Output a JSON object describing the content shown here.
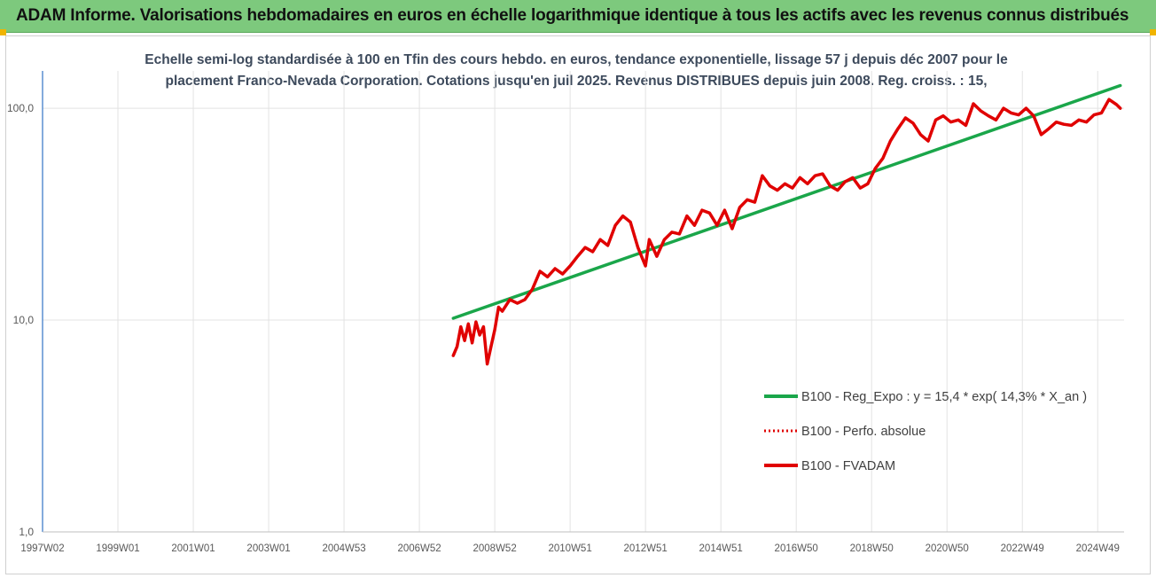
{
  "header": {
    "title": "ADAM Informe. Valorisations hebdomadaires en euros en échelle logarithmique identique à tous les actifs avec les revenus connus distribués",
    "colors": {
      "banner": "#7dc97d",
      "corner": "#f0b400"
    }
  },
  "chart_data": {
    "type": "line",
    "subtitle_lines": [
      "Echelle semi-log standardisée à 100 en Tfin des cours hebdo. en euros, tendance exponentielle, lissage 57 j depuis déc 2007 pour le",
      "placement Franco-Nevada Corporation. Cotations jusqu'en juil 2025. Revenus DISTRIBUES depuis juin 2008. Reg. croiss. : 15,"
    ],
    "y_scale": "log",
    "ylim": [
      1,
      150
    ],
    "y_ticks": [
      {
        "value": 1,
        "label": "1,0"
      },
      {
        "value": 10,
        "label": "10,0"
      },
      {
        "value": 100,
        "label": "100,0"
      }
    ],
    "xlim": [
      1997.0,
      2025.7
    ],
    "x_ticks": [
      {
        "value": 1997.0,
        "label": "1997W02"
      },
      {
        "value": 1999.0,
        "label": "1999W01"
      },
      {
        "value": 2001.0,
        "label": "2001W01"
      },
      {
        "value": 2003.0,
        "label": "2003W01"
      },
      {
        "value": 2005.0,
        "label": "2004W53"
      },
      {
        "value": 2007.0,
        "label": "2006W52"
      },
      {
        "value": 2009.0,
        "label": "2008W52"
      },
      {
        "value": 2011.0,
        "label": "2010W51"
      },
      {
        "value": 2013.0,
        "label": "2012W51"
      },
      {
        "value": 2015.0,
        "label": "2014W51"
      },
      {
        "value": 2017.0,
        "label": "2016W50"
      },
      {
        "value": 2019.0,
        "label": "2018W50"
      },
      {
        "value": 2021.0,
        "label": "2020W50"
      },
      {
        "value": 2023.0,
        "label": "2022W49"
      },
      {
        "value": 2025.0,
        "label": "2024W49"
      }
    ],
    "grid": "vertical-and-horizontal",
    "legend_position": "right",
    "series": [
      {
        "name": "B100 - Reg_Expo : y = 15,4 * exp( 14,3% *  X_an )",
        "color": "#1aa64a",
        "style": "solid",
        "x": [
          2007.9,
          2025.6
        ],
        "y": [
          10.2,
          128
        ]
      },
      {
        "name": "B100 - Perfo. absolue",
        "color": "#e00000",
        "style": "dotted",
        "x": [],
        "y": []
      },
      {
        "name": "B100 - FVADAM",
        "color": "#e00000",
        "style": "solid",
        "x": [
          2007.9,
          2008.0,
          2008.1,
          2008.2,
          2008.3,
          2008.4,
          2008.5,
          2008.6,
          2008.7,
          2008.8,
          2008.9,
          2009.0,
          2009.1,
          2009.2,
          2009.4,
          2009.6,
          2009.8,
          2010.0,
          2010.2,
          2010.4,
          2010.6,
          2010.8,
          2011.0,
          2011.2,
          2011.4,
          2011.6,
          2011.8,
          2012.0,
          2012.2,
          2012.4,
          2012.6,
          2012.8,
          2013.0,
          2013.1,
          2013.3,
          2013.5,
          2013.7,
          2013.9,
          2014.1,
          2014.3,
          2014.5,
          2014.7,
          2014.9,
          2015.1,
          2015.3,
          2015.5,
          2015.7,
          2015.9,
          2016.1,
          2016.3,
          2016.5,
          2016.7,
          2016.9,
          2017.1,
          2017.3,
          2017.5,
          2017.7,
          2017.9,
          2018.1,
          2018.3,
          2018.5,
          2018.7,
          2018.9,
          2019.1,
          2019.3,
          2019.5,
          2019.7,
          2019.9,
          2020.1,
          2020.3,
          2020.5,
          2020.7,
          2020.9,
          2021.1,
          2021.3,
          2021.5,
          2021.7,
          2021.9,
          2022.1,
          2022.3,
          2022.5,
          2022.7,
          2022.9,
          2023.1,
          2023.3,
          2023.5,
          2023.7,
          2023.9,
          2024.1,
          2024.3,
          2024.5,
          2024.7,
          2024.9,
          2025.1,
          2025.3,
          2025.5,
          2025.6
        ],
        "y": [
          6.8,
          7.5,
          9.3,
          8.0,
          9.6,
          7.8,
          9.8,
          8.5,
          9.3,
          6.2,
          7.5,
          9.0,
          11.5,
          11.0,
          12.5,
          12.0,
          12.5,
          14.0,
          17.0,
          16.0,
          17.5,
          16.5,
          18.0,
          20.0,
          22.0,
          21.0,
          24.0,
          22.5,
          28.0,
          31.0,
          29.0,
          22.0,
          18.0,
          24.0,
          20.0,
          24.0,
          26.0,
          25.5,
          31.0,
          28.0,
          33.0,
          32.0,
          28.0,
          33.0,
          27.0,
          34.0,
          37.0,
          36.0,
          48.0,
          43.0,
          41.0,
          44.0,
          42.0,
          47.0,
          44.0,
          48.0,
          49.0,
          43.0,
          41.0,
          45.0,
          47.0,
          42.0,
          44.0,
          52.0,
          58.0,
          70.0,
          80.0,
          90.0,
          85.0,
          75.0,
          70.0,
          88.0,
          92.0,
          86.0,
          88.0,
          83.0,
          105.0,
          97.0,
          92.0,
          88.0,
          100.0,
          95.0,
          93.0,
          100.0,
          92.0,
          75.0,
          80.0,
          86.0,
          84.0,
          83.0,
          88.0,
          86.0,
          93.0,
          95.0,
          110.0,
          104.0,
          100.0
        ]
      }
    ]
  }
}
